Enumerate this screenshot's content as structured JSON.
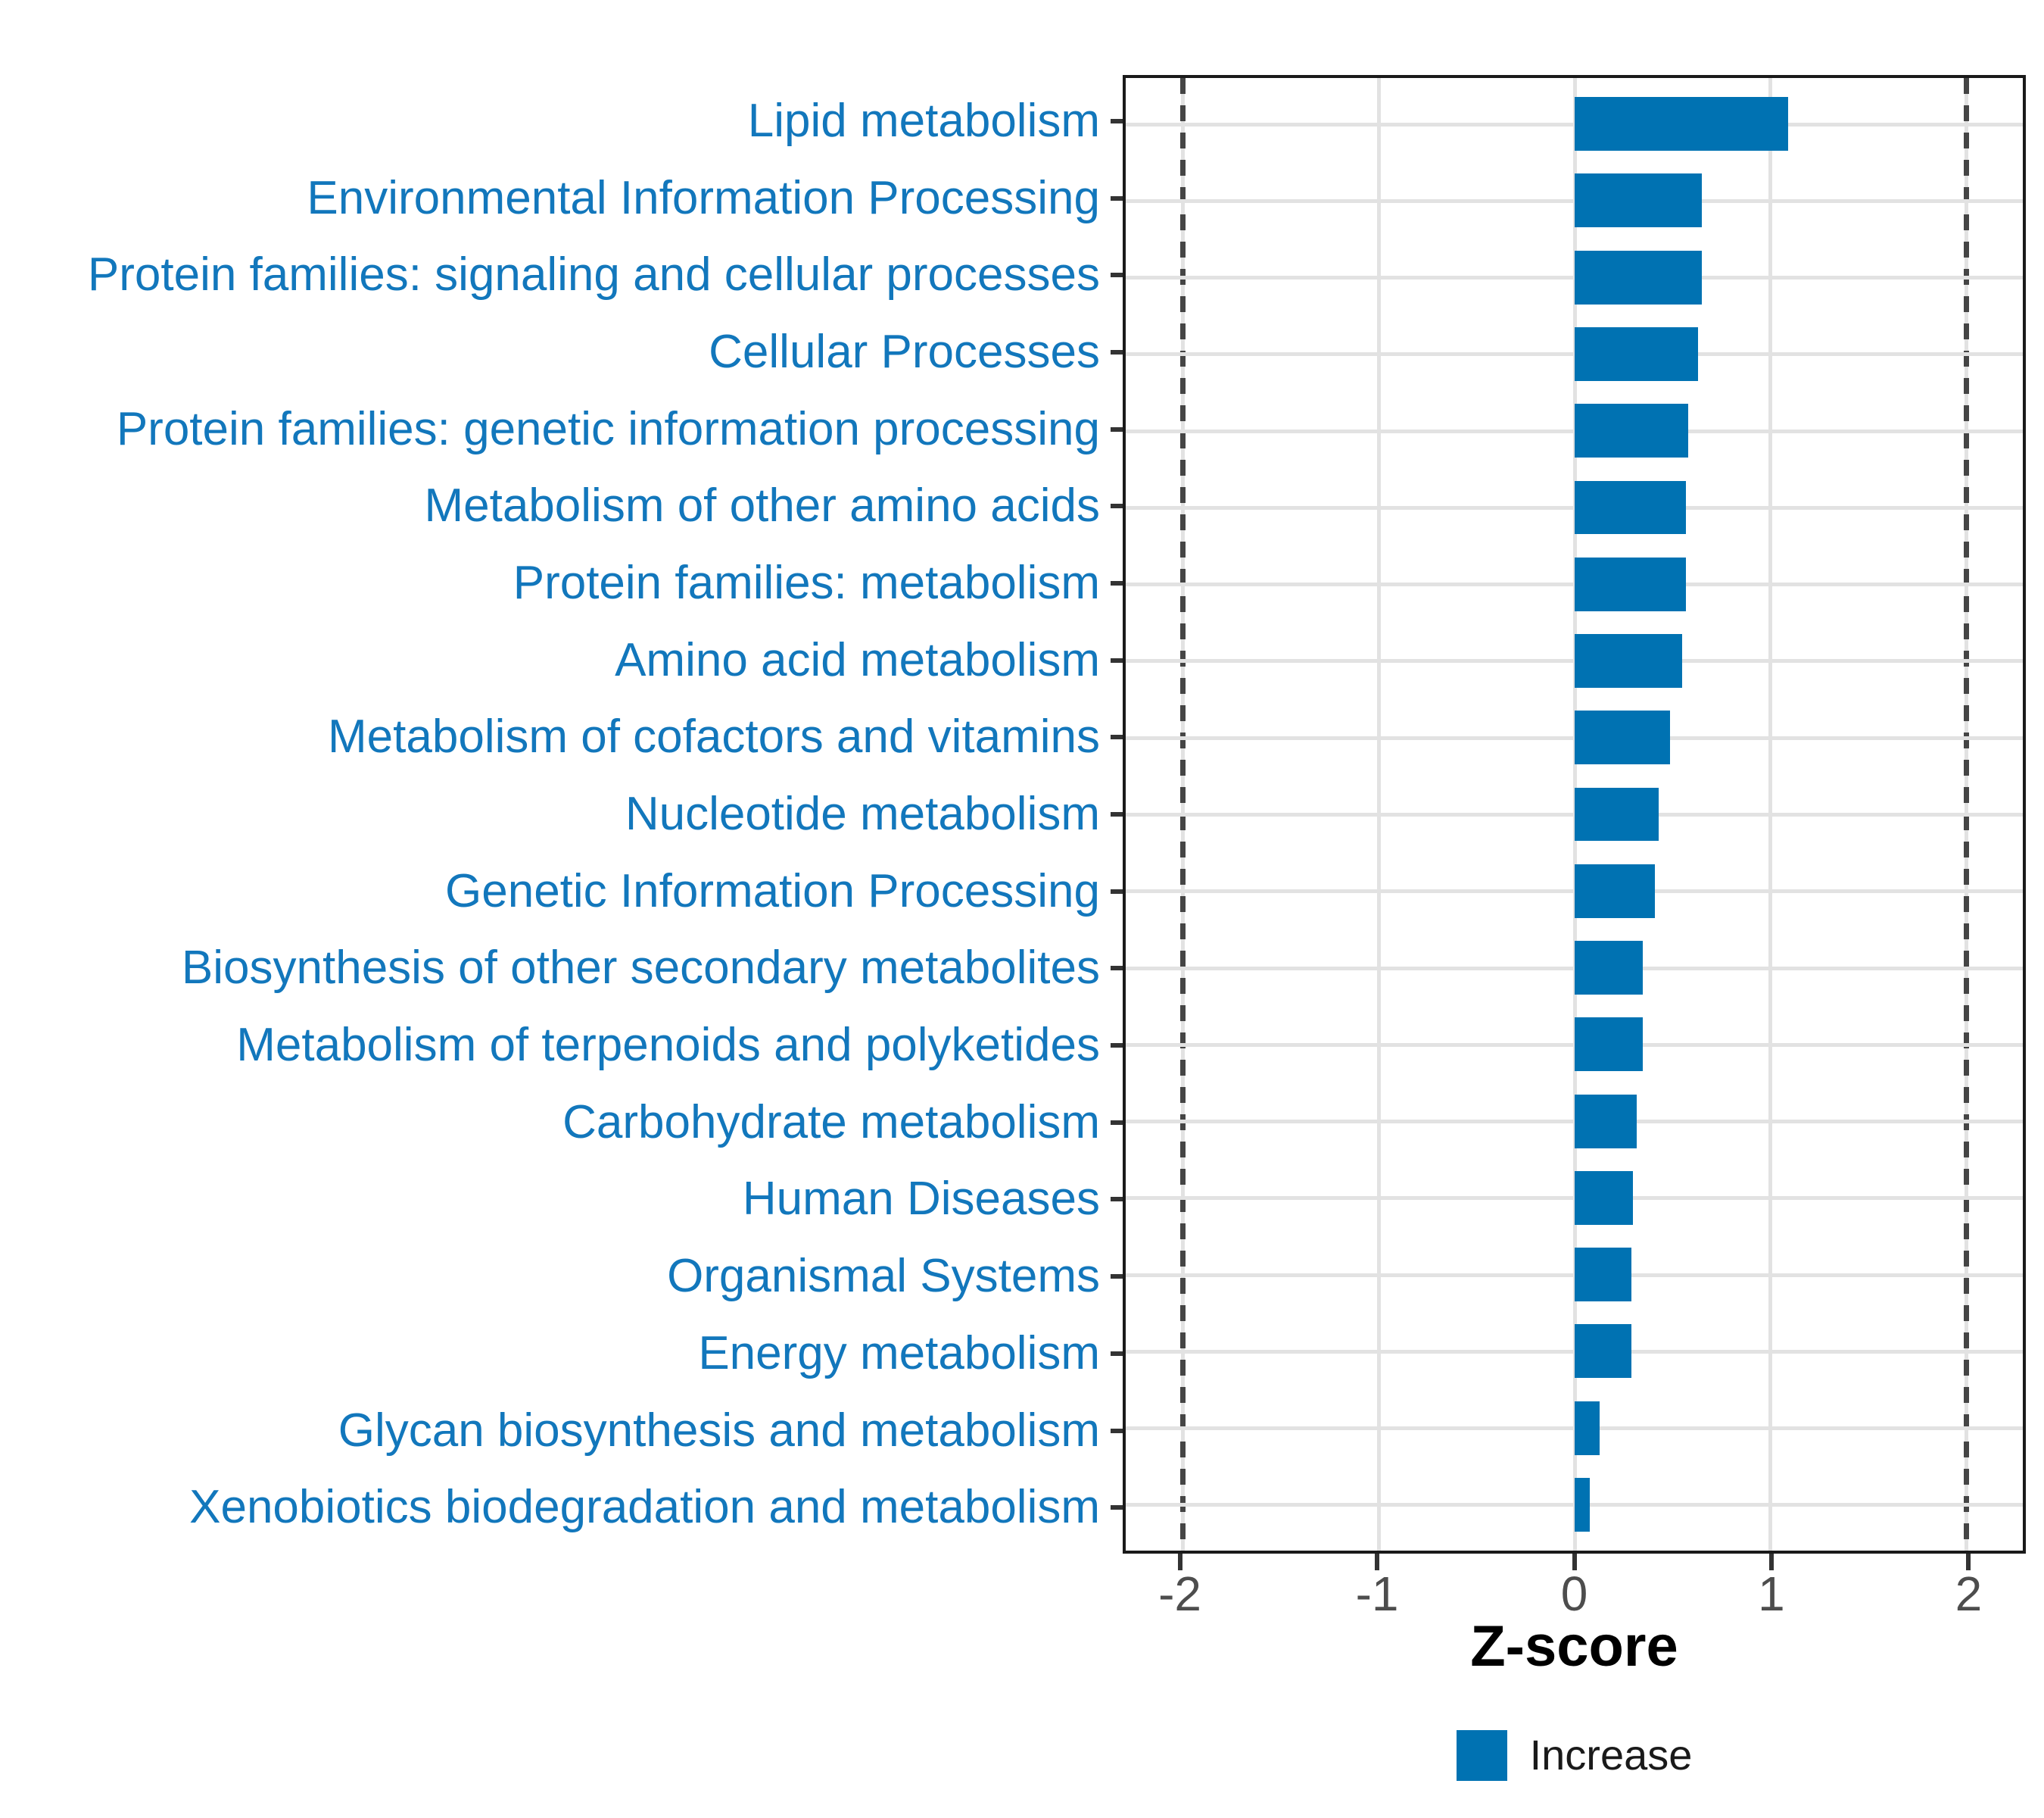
{
  "chart_data": {
    "type": "bar",
    "orientation": "horizontal",
    "categories": [
      "Lipid metabolism",
      "Environmental Information Processing",
      "Protein families: signaling and cellular processes",
      "Cellular Processes",
      "Protein families: genetic information processing",
      "Metabolism of other amino acids",
      "Protein families: metabolism",
      "Amino acid metabolism",
      "Metabolism of cofactors and vitamins",
      "Nucleotide metabolism",
      "Genetic Information Processing",
      "Biosynthesis of other secondary metabolites",
      "Metabolism of terpenoids and polyketides",
      "Carbohydrate metabolism",
      "Human Diseases",
      "Organismal Systems",
      "Energy metabolism",
      "Glycan biosynthesis and metabolism",
      "Xenobiotics biodegradation and metabolism"
    ],
    "values": [
      1.09,
      0.65,
      0.65,
      0.63,
      0.58,
      0.57,
      0.57,
      0.55,
      0.49,
      0.43,
      0.41,
      0.35,
      0.35,
      0.32,
      0.3,
      0.29,
      0.29,
      0.13,
      0.08
    ],
    "xlabel": "Z-score",
    "x_ticks": [
      -2,
      -1,
      0,
      1,
      2
    ],
    "xlim": [
      -2.29,
      2.29
    ],
    "reference_lines": [
      -2,
      2
    ],
    "grid": true,
    "legend_position": "bottom",
    "legend": [
      {
        "label": "Increase",
        "color": "#0072B2"
      }
    ],
    "bar_color": "#0072B2",
    "category_label_color": "#1277BC",
    "tick_label_color": "#4D4D4D",
    "gridline_color": "#E2E2E2",
    "refline_color": "#454545"
  }
}
